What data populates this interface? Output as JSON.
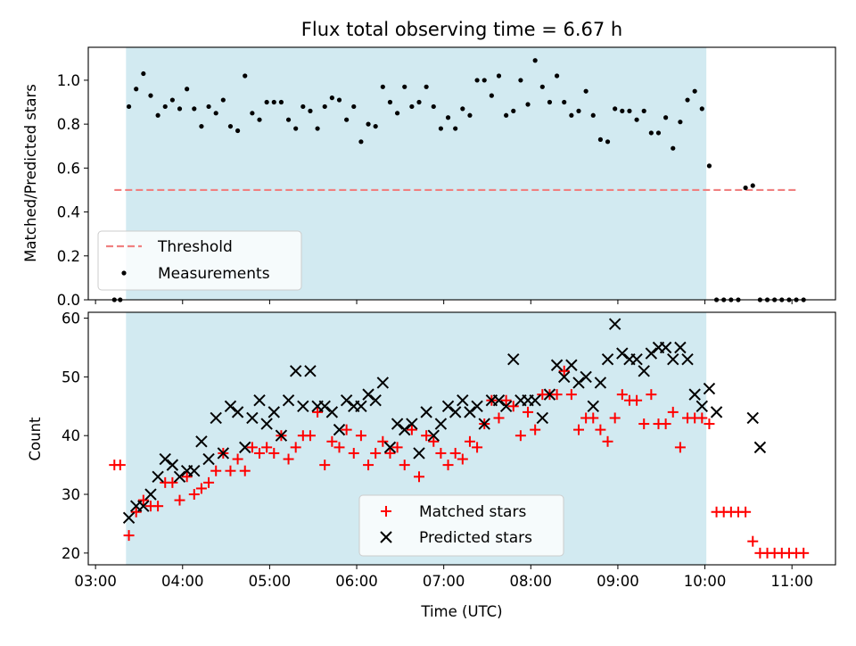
{
  "chart_data": {
    "title": "Flux total observing time = 6.67 h",
    "colors": {
      "span": "#add8e6",
      "threshold": "#f08080",
      "measurements": "#000000",
      "matched": "#ff0000",
      "predicted": "#000000"
    },
    "observing_window": [
      "03:21",
      "10:01"
    ],
    "x": {
      "label": "Time (UTC)",
      "range": [
        "02:55",
        "11:30"
      ],
      "ticks": [
        "03:00",
        "04:00",
        "05:00",
        "06:00",
        "07:00",
        "08:00",
        "09:00",
        "10:00",
        "11:00"
      ]
    },
    "top": {
      "type": "scatter",
      "ylabel": "Matched/Predicted stars",
      "ylim": [
        0,
        1.15
      ],
      "yticks": [
        "0.0",
        "0.2",
        "0.4",
        "0.6",
        "0.8",
        "1.0"
      ],
      "threshold": {
        "name": "Threshold",
        "value": 0.5,
        "x_range": [
          "03:13",
          "11:05"
        ]
      },
      "legend": {
        "placement": "lower-left",
        "entries": [
          "Threshold",
          "Measurements"
        ]
      },
      "measurements": {
        "name": "Measurements",
        "points": [
          [
            "03:13",
            0.0
          ],
          [
            "03:17",
            0.0
          ],
          [
            "03:23",
            0.88
          ],
          [
            "03:28",
            0.96
          ],
          [
            "03:33",
            1.03
          ],
          [
            "03:38",
            0.93
          ],
          [
            "03:43",
            0.84
          ],
          [
            "03:48",
            0.88
          ],
          [
            "03:53",
            0.91
          ],
          [
            "03:58",
            0.87
          ],
          [
            "04:03",
            0.96
          ],
          [
            "04:08",
            0.87
          ],
          [
            "04:13",
            0.79
          ],
          [
            "04:18",
            0.88
          ],
          [
            "04:23",
            0.85
          ],
          [
            "04:28",
            0.91
          ],
          [
            "04:33",
            0.79
          ],
          [
            "04:38",
            0.77
          ],
          [
            "04:43",
            1.02
          ],
          [
            "04:48",
            0.85
          ],
          [
            "04:53",
            0.82
          ],
          [
            "04:58",
            0.9
          ],
          [
            "05:03",
            0.9
          ],
          [
            "05:08",
            0.9
          ],
          [
            "05:13",
            0.82
          ],
          [
            "05:18",
            0.78
          ],
          [
            "05:23",
            0.88
          ],
          [
            "05:28",
            0.86
          ],
          [
            "05:33",
            0.78
          ],
          [
            "05:38",
            0.88
          ],
          [
            "05:43",
            0.92
          ],
          [
            "05:48",
            0.91
          ],
          [
            "05:53",
            0.82
          ],
          [
            "05:58",
            0.88
          ],
          [
            "06:03",
            0.72
          ],
          [
            "06:08",
            0.8
          ],
          [
            "06:13",
            0.79
          ],
          [
            "06:18",
            0.97
          ],
          [
            "06:23",
            0.9
          ],
          [
            "06:28",
            0.85
          ],
          [
            "06:33",
            0.97
          ],
          [
            "06:38",
            0.88
          ],
          [
            "06:43",
            0.9
          ],
          [
            "06:48",
            0.97
          ],
          [
            "06:53",
            0.88
          ],
          [
            "06:58",
            0.78
          ],
          [
            "07:03",
            0.83
          ],
          [
            "07:08",
            0.78
          ],
          [
            "07:13",
            0.87
          ],
          [
            "07:18",
            0.84
          ],
          [
            "07:23",
            1.0
          ],
          [
            "07:28",
            1.0
          ],
          [
            "07:33",
            0.93
          ],
          [
            "07:38",
            1.02
          ],
          [
            "07:43",
            0.84
          ],
          [
            "07:48",
            0.86
          ],
          [
            "07:53",
            1.0
          ],
          [
            "07:58",
            0.89
          ],
          [
            "08:03",
            1.09
          ],
          [
            "08:08",
            0.97
          ],
          [
            "08:13",
            0.9
          ],
          [
            "08:18",
            1.02
          ],
          [
            "08:23",
            0.9
          ],
          [
            "08:28",
            0.84
          ],
          [
            "08:33",
            0.86
          ],
          [
            "08:38",
            0.95
          ],
          [
            "08:43",
            0.84
          ],
          [
            "08:48",
            0.73
          ],
          [
            "08:53",
            0.72
          ],
          [
            "08:58",
            0.87
          ],
          [
            "09:03",
            0.86
          ],
          [
            "09:08",
            0.86
          ],
          [
            "09:13",
            0.82
          ],
          [
            "09:18",
            0.86
          ],
          [
            "09:23",
            0.76
          ],
          [
            "09:28",
            0.76
          ],
          [
            "09:33",
            0.83
          ],
          [
            "09:38",
            0.69
          ],
          [
            "09:43",
            0.81
          ],
          [
            "09:48",
            0.91
          ],
          [
            "09:53",
            0.95
          ],
          [
            "09:58",
            0.87
          ],
          [
            "10:03",
            0.61
          ],
          [
            "10:08",
            0.0
          ],
          [
            "10:13",
            0.0
          ],
          [
            "10:18",
            0.0
          ],
          [
            "10:23",
            0.0
          ],
          [
            "10:28",
            0.51
          ],
          [
            "10:33",
            0.52
          ],
          [
            "10:38",
            0.0
          ],
          [
            "10:43",
            0.0
          ],
          [
            "10:48",
            0.0
          ],
          [
            "10:53",
            0.0
          ],
          [
            "10:58",
            0.0
          ],
          [
            "11:03",
            0.0
          ],
          [
            "11:08",
            0.0
          ]
        ]
      }
    },
    "bottom": {
      "type": "scatter",
      "ylabel": "Count",
      "ylim": [
        18,
        61
      ],
      "yticks": [
        "20",
        "30",
        "40",
        "50",
        "60"
      ],
      "legend": {
        "placement": "lower-center",
        "entries": [
          "Matched stars",
          "Predicted stars"
        ]
      },
      "matched": {
        "name": "Matched stars",
        "points": [
          [
            "03:13",
            35
          ],
          [
            "03:17",
            35
          ],
          [
            "03:23",
            23
          ],
          [
            "03:28",
            27
          ],
          [
            "03:33",
            29
          ],
          [
            "03:38",
            28
          ],
          [
            "03:43",
            28
          ],
          [
            "03:48",
            32
          ],
          [
            "03:53",
            32
          ],
          [
            "03:58",
            29
          ],
          [
            "04:03",
            33
          ],
          [
            "04:08",
            30
          ],
          [
            "04:13",
            31
          ],
          [
            "04:18",
            32
          ],
          [
            "04:23",
            34
          ],
          [
            "04:28",
            37
          ],
          [
            "04:33",
            34
          ],
          [
            "04:38",
            36
          ],
          [
            "04:43",
            34
          ],
          [
            "04:48",
            38
          ],
          [
            "04:53",
            37
          ],
          [
            "04:58",
            38
          ],
          [
            "05:03",
            37
          ],
          [
            "05:08",
            40
          ],
          [
            "05:13",
            36
          ],
          [
            "05:18",
            38
          ],
          [
            "05:23",
            40
          ],
          [
            "05:28",
            40
          ],
          [
            "05:33",
            44
          ],
          [
            "05:38",
            35
          ],
          [
            "05:43",
            39
          ],
          [
            "05:48",
            38
          ],
          [
            "05:53",
            41
          ],
          [
            "05:58",
            37
          ],
          [
            "06:03",
            40
          ],
          [
            "06:08",
            35
          ],
          [
            "06:13",
            37
          ],
          [
            "06:18",
            39
          ],
          [
            "06:23",
            37
          ],
          [
            "06:28",
            38
          ],
          [
            "06:33",
            35
          ],
          [
            "06:38",
            41
          ],
          [
            "06:43",
            33
          ],
          [
            "06:48",
            40
          ],
          [
            "06:53",
            39
          ],
          [
            "06:58",
            37
          ],
          [
            "07:03",
            35
          ],
          [
            "07:08",
            37
          ],
          [
            "07:13",
            36
          ],
          [
            "07:18",
            39
          ],
          [
            "07:23",
            38
          ],
          [
            "07:28",
            42
          ],
          [
            "07:33",
            46
          ],
          [
            "07:38",
            43
          ],
          [
            "07:43",
            46
          ],
          [
            "07:48",
            45
          ],
          [
            "07:53",
            40
          ],
          [
            "07:58",
            44
          ],
          [
            "08:03",
            41
          ],
          [
            "08:08",
            47
          ],
          [
            "08:13",
            47
          ],
          [
            "08:18",
            47
          ],
          [
            "08:23",
            51
          ],
          [
            "08:28",
            47
          ],
          [
            "08:33",
            41
          ],
          [
            "08:38",
            43
          ],
          [
            "08:43",
            43
          ],
          [
            "08:48",
            41
          ],
          [
            "08:53",
            39
          ],
          [
            "08:58",
            43
          ],
          [
            "09:03",
            47
          ],
          [
            "09:08",
            46
          ],
          [
            "09:13",
            46
          ],
          [
            "09:18",
            42
          ],
          [
            "09:23",
            47
          ],
          [
            "09:28",
            42
          ],
          [
            "09:33",
            42
          ],
          [
            "09:38",
            44
          ],
          [
            "09:43",
            38
          ],
          [
            "09:48",
            43
          ],
          [
            "09:53",
            43
          ],
          [
            "09:58",
            43
          ],
          [
            "10:03",
            42
          ],
          [
            "10:08",
            27
          ],
          [
            "10:13",
            27
          ],
          [
            "10:18",
            27
          ],
          [
            "10:23",
            27
          ],
          [
            "10:28",
            27
          ],
          [
            "10:33",
            22
          ],
          [
            "10:38",
            20
          ],
          [
            "10:43",
            20
          ],
          [
            "10:48",
            20
          ],
          [
            "10:53",
            20
          ],
          [
            "10:58",
            20
          ],
          [
            "11:03",
            20
          ],
          [
            "11:08",
            20
          ]
        ]
      },
      "predicted": {
        "name": "Predicted stars",
        "points": [
          [
            "03:23",
            26
          ],
          [
            "03:28",
            28
          ],
          [
            "03:33",
            28
          ],
          [
            "03:38",
            30
          ],
          [
            "03:43",
            33
          ],
          [
            "03:48",
            36
          ],
          [
            "03:53",
            35
          ],
          [
            "03:58",
            33
          ],
          [
            "04:03",
            34
          ],
          [
            "04:08",
            34
          ],
          [
            "04:13",
            39
          ],
          [
            "04:18",
            36
          ],
          [
            "04:23",
            43
          ],
          [
            "04:28",
            37
          ],
          [
            "04:33",
            45
          ],
          [
            "04:38",
            44
          ],
          [
            "04:43",
            38
          ],
          [
            "04:48",
            43
          ],
          [
            "04:53",
            46
          ],
          [
            "04:58",
            42
          ],
          [
            "05:03",
            44
          ],
          [
            "05:08",
            40
          ],
          [
            "05:13",
            46
          ],
          [
            "05:18",
            51
          ],
          [
            "05:23",
            45
          ],
          [
            "05:28",
            51
          ],
          [
            "05:33",
            45
          ],
          [
            "05:38",
            45
          ],
          [
            "05:43",
            44
          ],
          [
            "05:48",
            41
          ],
          [
            "05:53",
            46
          ],
          [
            "05:58",
            45
          ],
          [
            "06:03",
            45
          ],
          [
            "06:08",
            47
          ],
          [
            "06:13",
            46
          ],
          [
            "06:18",
            49
          ],
          [
            "06:23",
            38
          ],
          [
            "06:28",
            42
          ],
          [
            "06:33",
            41
          ],
          [
            "06:38",
            42
          ],
          [
            "06:43",
            37
          ],
          [
            "06:48",
            44
          ],
          [
            "06:53",
            40
          ],
          [
            "06:58",
            42
          ],
          [
            "07:03",
            45
          ],
          [
            "07:08",
            44
          ],
          [
            "07:13",
            46
          ],
          [
            "07:18",
            44
          ],
          [
            "07:23",
            45
          ],
          [
            "07:28",
            42
          ],
          [
            "07:33",
            46
          ],
          [
            "07:38",
            46
          ],
          [
            "07:43",
            45
          ],
          [
            "07:48",
            53
          ],
          [
            "07:53",
            46
          ],
          [
            "07:58",
            46
          ],
          [
            "08:03",
            46
          ],
          [
            "08:08",
            43
          ],
          [
            "08:13",
            47
          ],
          [
            "08:18",
            52
          ],
          [
            "08:23",
            50
          ],
          [
            "08:28",
            52
          ],
          [
            "08:33",
            49
          ],
          [
            "08:38",
            50
          ],
          [
            "08:43",
            45
          ],
          [
            "08:48",
            49
          ],
          [
            "08:53",
            53
          ],
          [
            "08:58",
            59
          ],
          [
            "09:03",
            54
          ],
          [
            "09:08",
            53
          ],
          [
            "09:13",
            53
          ],
          [
            "09:18",
            51
          ],
          [
            "09:23",
            54
          ],
          [
            "09:28",
            55
          ],
          [
            "09:33",
            55
          ],
          [
            "09:38",
            53
          ],
          [
            "09:43",
            55
          ],
          [
            "09:48",
            53
          ],
          [
            "09:53",
            47
          ],
          [
            "09:58",
            45
          ],
          [
            "10:03",
            48
          ],
          [
            "10:08",
            44
          ],
          [
            "10:33",
            43
          ],
          [
            "10:38",
            38
          ]
        ]
      }
    }
  }
}
